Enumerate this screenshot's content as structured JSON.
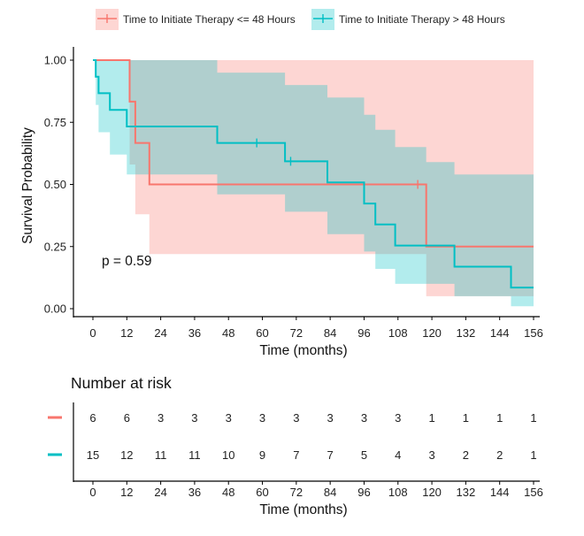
{
  "chart_data": {
    "type": "line",
    "subtype": "kaplan-meier",
    "legend": {
      "placement": "top",
      "entries": [
        {
          "name": "Time to Initiate Therapy <= 48 Hours",
          "color": "#F8766D"
        },
        {
          "name": "Time to Initiate Therapy > 48 Hours",
          "color": "#00BFC4"
        }
      ]
    },
    "xlabel": "Time (months)",
    "ylabel": "Survival Probability",
    "xlim": [
      0,
      156
    ],
    "ylim": [
      0,
      1
    ],
    "x_ticks": [
      0,
      12,
      24,
      36,
      48,
      60,
      72,
      84,
      96,
      108,
      120,
      132,
      144,
      156
    ],
    "y_ticks": [
      "0.00",
      "0.25",
      "0.50",
      "0.75",
      "1.00"
    ],
    "y_tick_values": [
      0,
      0.25,
      0.5,
      0.75,
      1.0
    ],
    "annotation": "p = 0.59",
    "series": [
      {
        "name": "Time to Initiate Therapy <= 48 Hours",
        "color": "#F8766D",
        "fill": "#F8766D",
        "steps": [
          [
            0,
            1.0
          ],
          [
            13,
            0.833
          ],
          [
            15,
            0.667
          ],
          [
            20,
            0.5
          ],
          [
            118,
            0.25
          ],
          [
            156,
            0.25
          ]
        ],
        "ci_upper": [
          [
            0,
            1.0
          ],
          [
            156,
            1.0
          ]
        ],
        "ci_lower": [
          [
            0,
            1.0
          ],
          [
            13,
            0.58
          ],
          [
            15,
            0.38
          ],
          [
            20,
            0.22
          ],
          [
            118,
            0.05
          ],
          [
            130,
            0.05
          ]
        ],
        "censor": [
          [
            115,
            0.5
          ]
        ]
      },
      {
        "name": "Time to Initiate Therapy > 48 Hours",
        "color": "#00BFC4",
        "fill": "#00BFC4",
        "steps": [
          [
            0,
            1.0
          ],
          [
            1,
            0.933
          ],
          [
            2,
            0.867
          ],
          [
            6,
            0.8
          ],
          [
            12,
            0.733
          ],
          [
            44,
            0.667
          ],
          [
            68,
            0.593
          ],
          [
            83,
            0.508
          ],
          [
            96,
            0.423
          ],
          [
            100,
            0.339
          ],
          [
            107,
            0.254
          ],
          [
            128,
            0.169
          ],
          [
            148,
            0.085
          ],
          [
            156,
            0.085
          ]
        ],
        "ci_upper": [
          [
            0,
            1.0
          ],
          [
            1,
            1.0
          ],
          [
            12,
            1.0
          ],
          [
            44,
            0.95
          ],
          [
            68,
            0.9
          ],
          [
            83,
            0.85
          ],
          [
            96,
            0.78
          ],
          [
            100,
            0.72
          ],
          [
            107,
            0.65
          ],
          [
            118,
            0.59
          ],
          [
            128,
            0.54
          ],
          [
            156,
            0.54
          ]
        ],
        "ci_lower": [
          [
            0,
            1.0
          ],
          [
            1,
            0.82
          ],
          [
            2,
            0.71
          ],
          [
            6,
            0.62
          ],
          [
            12,
            0.54
          ],
          [
            44,
            0.46
          ],
          [
            68,
            0.39
          ],
          [
            83,
            0.3
          ],
          [
            96,
            0.23
          ],
          [
            100,
            0.16
          ],
          [
            107,
            0.1
          ],
          [
            118,
            0.1
          ],
          [
            128,
            0.05
          ],
          [
            148,
            0.01
          ],
          [
            156,
            0.01
          ]
        ],
        "censor": [
          [
            58,
            0.667
          ],
          [
            70,
            0.593
          ]
        ]
      }
    ],
    "risk_table": {
      "title": "Number at risk",
      "xlabel": "Time (months)",
      "times": [
        0,
        12,
        24,
        36,
        48,
        60,
        72,
        84,
        96,
        108,
        120,
        132,
        144,
        156
      ],
      "rows": [
        {
          "color": "#F8766D",
          "counts": [
            6,
            6,
            3,
            3,
            3,
            3,
            3,
            3,
            3,
            3,
            1,
            1,
            1,
            1
          ]
        },
        {
          "color": "#00BFC4",
          "counts": [
            15,
            12,
            11,
            11,
            10,
            9,
            7,
            7,
            5,
            4,
            3,
            2,
            2,
            1
          ]
        }
      ]
    }
  }
}
